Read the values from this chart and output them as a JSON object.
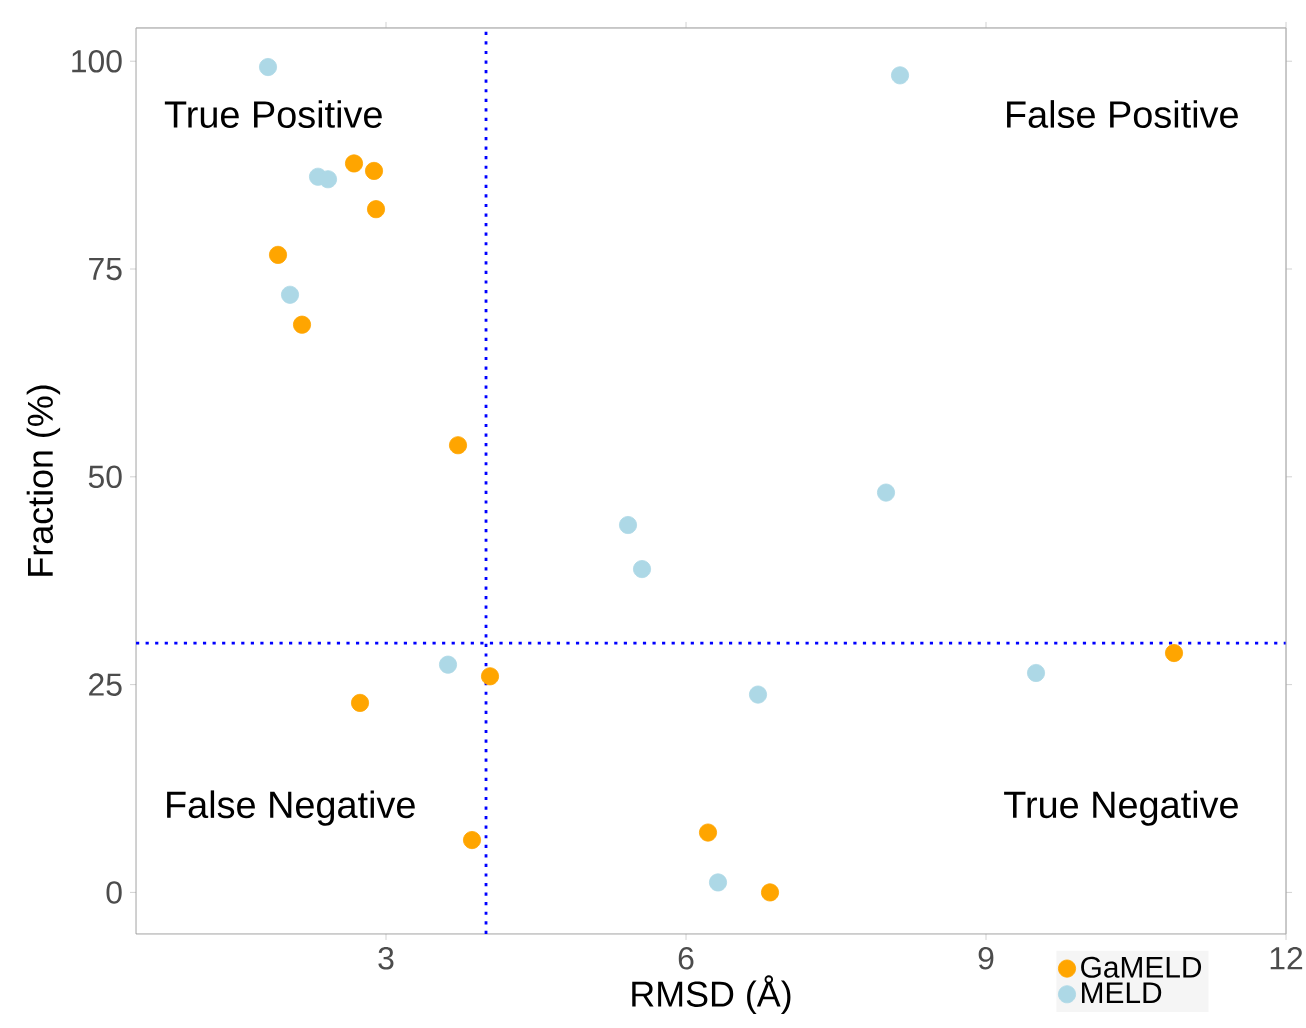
{
  "chart_data": {
    "type": "scatter",
    "xlabel": "RMSD (Å)",
    "ylabel": "Fraction (%)",
    "xlim": [
      0.5,
      12
    ],
    "ylim": [
      -5,
      104
    ],
    "xticks": [
      3,
      6,
      9,
      12
    ],
    "yticks": [
      0,
      25,
      50,
      75,
      100
    ],
    "marker": "circle",
    "legend": "bottom right",
    "series": [
      {
        "name": "GaMELD",
        "color": "#ffa500",
        "x": [
          2.68,
          2.88,
          2.9,
          1.92,
          2.16,
          3.72,
          2.74,
          4.04,
          3.86,
          6.22,
          6.84,
          10.88
        ],
        "values": [
          87.7,
          86.8,
          82.2,
          76.7,
          68.3,
          53.8,
          22.8,
          26.0,
          6.3,
          7.2,
          0,
          28.8
        ]
      },
      {
        "name": "MELD",
        "color": "#add8e6",
        "x": [
          1.82,
          2.32,
          2.42,
          2.04,
          3.62,
          5.42,
          5.56,
          6.72,
          6.32,
          8.14,
          8.0,
          9.5
        ],
        "values": [
          99.3,
          86.1,
          85.8,
          71.9,
          27.4,
          44.2,
          38.9,
          23.8,
          1.2,
          98.3,
          48.1,
          26.4
        ]
      }
    ],
    "ref_lines": [
      {
        "axis": "x",
        "value": 4,
        "color": "#0000ff",
        "line_style": "dotted"
      },
      {
        "axis": "y",
        "value": 30,
        "color": "#0000ff",
        "line_style": "dotted"
      }
    ],
    "annotations": [
      "True Positive",
      "False Positive",
      "False Negative",
      "True Negative"
    ]
  }
}
